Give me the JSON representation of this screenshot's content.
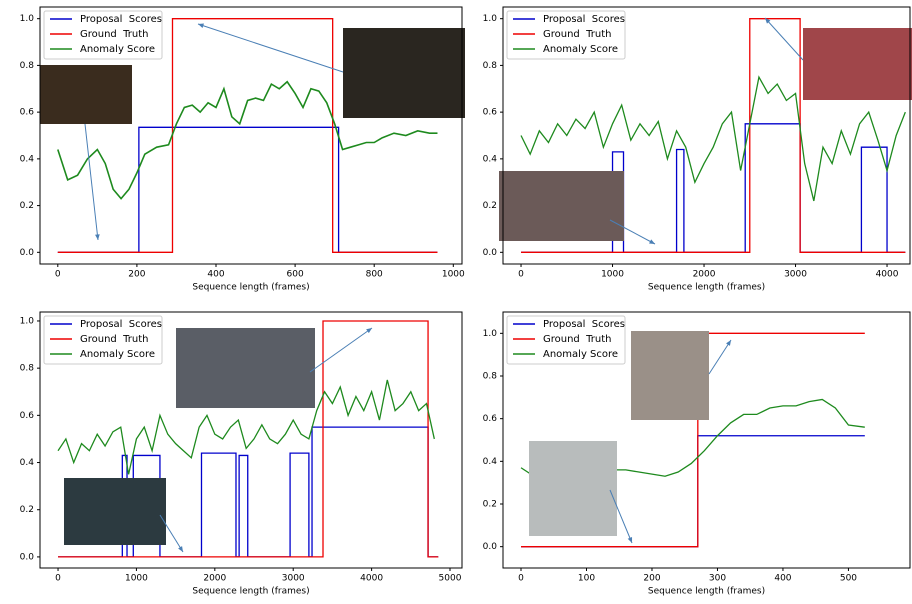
{
  "chart_data": [
    {
      "type": "line",
      "xlabel": "Sequence length (frames)",
      "xlim": [
        -45,
        1022
      ],
      "ylim": [
        -0.05,
        1.05
      ],
      "xticks": [
        0,
        200,
        400,
        600,
        800,
        1000
      ],
      "yticks": [
        {
          "value": 0,
          "label": "0.0"
        },
        0.2,
        0.4,
        0.6,
        0.8,
        {
          "value": 1,
          "label": "1.0"
        }
      ],
      "legend": "upper left",
      "series": [
        {
          "name": "Proposal  Scores",
          "color": "#0000cc",
          "x": [
            0,
            205,
            205,
            710,
            710,
            960
          ],
          "values": [
            0,
            0,
            0.535,
            0.535,
            0,
            0
          ]
        },
        {
          "name": "Ground  Truth",
          "color": "#ee0000",
          "x": [
            0,
            290,
            290,
            695,
            695,
            960
          ],
          "values": [
            0,
            0,
            1,
            1,
            0,
            0
          ]
        },
        {
          "name": "Anomaly Score",
          "color": "#1e8a1e",
          "x": [
            0,
            25,
            50,
            75,
            100,
            120,
            140,
            160,
            180,
            200,
            220,
            250,
            280,
            300,
            320,
            340,
            360,
            380,
            400,
            420,
            440,
            460,
            480,
            500,
            520,
            540,
            560,
            580,
            600,
            620,
            640,
            660,
            680,
            700,
            720,
            740,
            760,
            780,
            800,
            820,
            850,
            880,
            910,
            940,
            960
          ],
          "values": [
            0.44,
            0.31,
            0.33,
            0.4,
            0.44,
            0.38,
            0.27,
            0.23,
            0.27,
            0.34,
            0.42,
            0.45,
            0.46,
            0.55,
            0.62,
            0.63,
            0.6,
            0.64,
            0.62,
            0.7,
            0.58,
            0.55,
            0.65,
            0.66,
            0.65,
            0.72,
            0.7,
            0.73,
            0.68,
            0.62,
            0.7,
            0.69,
            0.64,
            0.55,
            0.44,
            0.45,
            0.46,
            0.47,
            0.47,
            0.49,
            0.51,
            0.5,
            0.52,
            0.51,
            0.51
          ]
        }
      ]
    },
    {
      "type": "line",
      "xlabel": "Sequence length (frames)",
      "xlim": [
        -197,
        4251
      ],
      "ylim": [
        -0.05,
        1.05
      ],
      "xticks": [
        0,
        1000,
        2000,
        3000,
        4000
      ],
      "yticks": [
        {
          "value": 0,
          "label": "0.0"
        },
        0.2,
        0.4,
        0.6,
        0.8,
        {
          "value": 1,
          "label": "1.0"
        }
      ],
      "legend": "upper left",
      "series": [
        {
          "name": "Proposal  Scores",
          "color": "#0000cc",
          "x": [
            0,
            1000,
            1000,
            1120,
            1120,
            1700,
            1700,
            1780,
            1780,
            2450,
            2450,
            3050,
            3050,
            3720,
            3720,
            4000,
            4000,
            4200
          ],
          "values": [
            0,
            0,
            0.43,
            0.43,
            0,
            0,
            0.44,
            0.44,
            0,
            0,
            0.55,
            0.55,
            0,
            0,
            0.45,
            0.45,
            0,
            0
          ]
        },
        {
          "name": "Ground  Truth",
          "color": "#ee0000",
          "x": [
            0,
            2500,
            2500,
            3050,
            3050,
            4200
          ],
          "values": [
            0,
            0,
            1,
            1,
            0,
            0
          ]
        },
        {
          "name": "Anomaly Score",
          "color": "#1e8a1e",
          "x": [
            0,
            100,
            200,
            300,
            400,
            500,
            600,
            700,
            800,
            900,
            1000,
            1100,
            1200,
            1300,
            1400,
            1500,
            1600,
            1700,
            1800,
            1900,
            2000,
            2100,
            2200,
            2300,
            2400,
            2500,
            2600,
            2700,
            2800,
            2900,
            3000,
            3100,
            3200,
            3300,
            3400,
            3500,
            3600,
            3700,
            3800,
            3900,
            4000,
            4100,
            4200
          ],
          "values": [
            0.5,
            0.42,
            0.52,
            0.47,
            0.55,
            0.5,
            0.57,
            0.53,
            0.6,
            0.45,
            0.55,
            0.63,
            0.48,
            0.55,
            0.5,
            0.56,
            0.4,
            0.52,
            0.45,
            0.3,
            0.38,
            0.45,
            0.55,
            0.6,
            0.35,
            0.55,
            0.75,
            0.68,
            0.72,
            0.65,
            0.68,
            0.38,
            0.22,
            0.45,
            0.38,
            0.52,
            0.42,
            0.55,
            0.6,
            0.48,
            0.35,
            0.5,
            0.6
          ]
        }
      ]
    },
    {
      "type": "line",
      "xlabel": "Sequence length (frames)",
      "xlim": [
        -230,
        5153
      ],
      "ylim": [
        -0.047,
        1.038
      ],
      "xticks": [
        0,
        1000,
        2000,
        3000,
        4000,
        5000
      ],
      "yticks": [
        {
          "value": 0,
          "label": "0.0"
        },
        0.2,
        0.4,
        0.6,
        0.8,
        {
          "value": 1,
          "label": "1.0"
        }
      ],
      "legend": "upper left",
      "series": [
        {
          "name": "Proposal  Scores",
          "color": "#0000cc",
          "x": [
            0,
            820,
            820,
            880,
            880,
            960,
            960,
            1300,
            1300,
            1830,
            1830,
            2270,
            2270,
            2310,
            2310,
            2420,
            2420,
            2960,
            2960,
            3200,
            3200,
            3240,
            3240,
            4720,
            4720,
            4850
          ],
          "values": [
            0,
            0,
            0.43,
            0.43,
            0,
            0,
            0.43,
            0.43,
            0,
            0,
            0.44,
            0.44,
            0,
            0,
            0.43,
            0.43,
            0,
            0,
            0.44,
            0.44,
            0,
            0,
            0.55,
            0.55,
            0,
            0
          ]
        },
        {
          "name": "Ground  Truth",
          "color": "#ee0000",
          "x": [
            0,
            3380,
            3380,
            4720,
            4720,
            4850
          ],
          "values": [
            0,
            0,
            1,
            1,
            0,
            0
          ]
        },
        {
          "name": "Anomaly Score",
          "color": "#1e8a1e",
          "x": [
            0,
            100,
            200,
            300,
            400,
            500,
            600,
            700,
            800,
            900,
            1000,
            1100,
            1200,
            1300,
            1400,
            1500,
            1600,
            1700,
            1800,
            1900,
            2000,
            2100,
            2200,
            2300,
            2400,
            2500,
            2600,
            2700,
            2800,
            2900,
            3000,
            3100,
            3200,
            3300,
            3400,
            3500,
            3600,
            3700,
            3800,
            3900,
            4000,
            4100,
            4200,
            4300,
            4400,
            4500,
            4600,
            4700,
            4800
          ],
          "values": [
            0.45,
            0.5,
            0.4,
            0.48,
            0.45,
            0.52,
            0.47,
            0.53,
            0.55,
            0.35,
            0.5,
            0.55,
            0.45,
            0.6,
            0.52,
            0.48,
            0.45,
            0.42,
            0.55,
            0.6,
            0.52,
            0.5,
            0.55,
            0.58,
            0.46,
            0.5,
            0.56,
            0.5,
            0.48,
            0.52,
            0.58,
            0.52,
            0.5,
            0.62,
            0.7,
            0.65,
            0.72,
            0.6,
            0.68,
            0.62,
            0.7,
            0.58,
            0.75,
            0.62,
            0.65,
            0.7,
            0.62,
            0.65,
            0.5
          ]
        }
      ]
    },
    {
      "type": "line",
      "xlabel": "Sequence length (frames)",
      "xlim": [
        -27.5,
        594
      ],
      "ylim": [
        -0.1,
        1.1
      ],
      "xticks": [
        0,
        100,
        200,
        300,
        400,
        500
      ],
      "yticks": [
        {
          "value": 0,
          "label": "0.0"
        },
        0.2,
        0.4,
        0.6,
        0.8,
        {
          "value": 1,
          "label": "1.0"
        }
      ],
      "legend": "upper left",
      "series": [
        {
          "name": "Proposal  Scores",
          "color": "#0000cc",
          "x": [
            0,
            270,
            270,
            525
          ],
          "values": [
            0,
            0,
            0.52,
            0.52
          ]
        },
        {
          "name": "Ground  Truth",
          "color": "#ee0000",
          "x": [
            0,
            270,
            270,
            525
          ],
          "values": [
            0,
            0,
            1,
            1
          ]
        },
        {
          "name": "Anomaly Score",
          "color": "#1e8a1e",
          "x": [
            0,
            20,
            40,
            60,
            80,
            100,
            120,
            140,
            160,
            180,
            200,
            220,
            240,
            260,
            280,
            300,
            320,
            340,
            360,
            380,
            400,
            420,
            440,
            460,
            480,
            500,
            525
          ],
          "values": [
            0.37,
            0.33,
            0.32,
            0.3,
            0.32,
            0.34,
            0.35,
            0.36,
            0.36,
            0.35,
            0.34,
            0.33,
            0.35,
            0.39,
            0.45,
            0.52,
            0.58,
            0.62,
            0.62,
            0.65,
            0.66,
            0.66,
            0.68,
            0.69,
            0.65,
            0.57,
            0.56
          ]
        }
      ]
    }
  ]
}
